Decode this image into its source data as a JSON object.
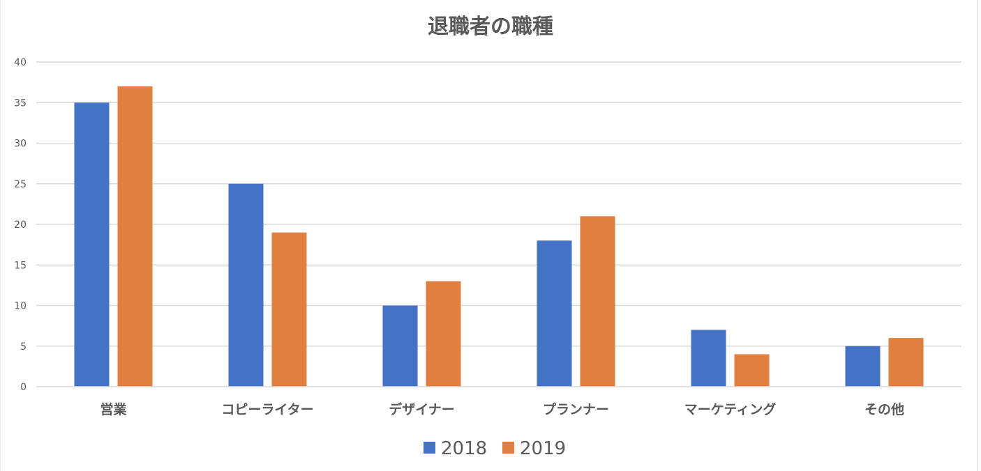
{
  "chart_data": {
    "type": "bar",
    "title": "退職者の職種",
    "categories": [
      "営業",
      "コピーライター",
      "デザイナー",
      "プランナー",
      "マーケティング",
      "その他"
    ],
    "series": [
      {
        "name": "2018",
        "color": "#4472C4",
        "values": [
          35,
          25,
          10,
          18,
          7,
          5
        ]
      },
      {
        "name": "2019",
        "color": "#E07F3F",
        "values": [
          37,
          19,
          13,
          21,
          4,
          6
        ]
      }
    ],
    "yticks": [
      "0",
      "5",
      "10",
      "15",
      "20",
      "25",
      "30",
      "35",
      "40"
    ],
    "ylim": [
      0,
      40
    ],
    "grid": true,
    "legend": "bottom"
  }
}
